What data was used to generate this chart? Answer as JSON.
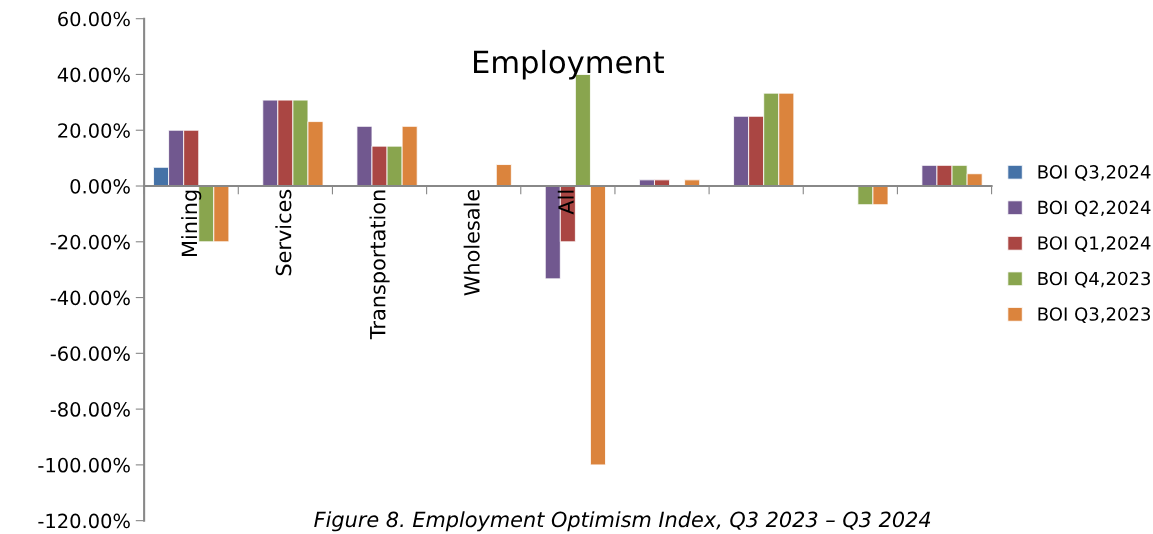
{
  "chart_data": {
    "type": "bar",
    "title": "Employment",
    "categories": [
      "Mining",
      "Services",
      "Transportation",
      "Wholesale",
      "All",
      null,
      null,
      null,
      null
    ],
    "series": [
      {
        "name": "BOI Q3,2024",
        "color": "#4572a7",
        "values": [
          6.7,
          null,
          null,
          null,
          null,
          null,
          null,
          null,
          null
        ]
      },
      {
        "name": "BOI Q2,2024",
        "color": "#71588f",
        "values": [
          20,
          30.8,
          21.4,
          null,
          -33.3,
          2.2,
          25,
          null,
          7.4
        ]
      },
      {
        "name": "BOI Q1,2024",
        "color": "#aa4643",
        "values": [
          20,
          30.8,
          14.3,
          null,
          -20,
          2.2,
          25,
          null,
          7.4
        ]
      },
      {
        "name": "BOI Q4,2023",
        "color": "#89a54e",
        "values": [
          -20,
          30.8,
          14.3,
          null,
          40,
          null,
          33.3,
          -6.7,
          7.4
        ]
      },
      {
        "name": "BOI Q3,2023",
        "color": "#db843d",
        "values": [
          -20,
          23.1,
          21.4,
          7.7,
          -100,
          2.2,
          33.3,
          -6.7,
          4.4
        ]
      }
    ],
    "ylim": [
      -120,
      60
    ],
    "yticks": [
      {
        "value": -120,
        "label": "-120.00%"
      },
      {
        "value": -100,
        "label": "-100.00%"
      },
      {
        "value": -80,
        "label": "-80.00%"
      },
      {
        "value": -60,
        "label": "-60.00%"
      },
      {
        "value": -40,
        "label": "-40.00%"
      },
      {
        "value": -20,
        "label": "-20.00%"
      },
      {
        "value": 0,
        "label": "0.00%"
      },
      {
        "value": 20,
        "label": "20.00%"
      },
      {
        "value": 40,
        "label": "40.00%"
      },
      {
        "value": 60,
        "label": "60.00%"
      }
    ],
    "grid": false,
    "legend": "right",
    "annotations": [
      "Figure 8. Employment Optimism Index, Q3 2023 – Q3 2024"
    ]
  }
}
